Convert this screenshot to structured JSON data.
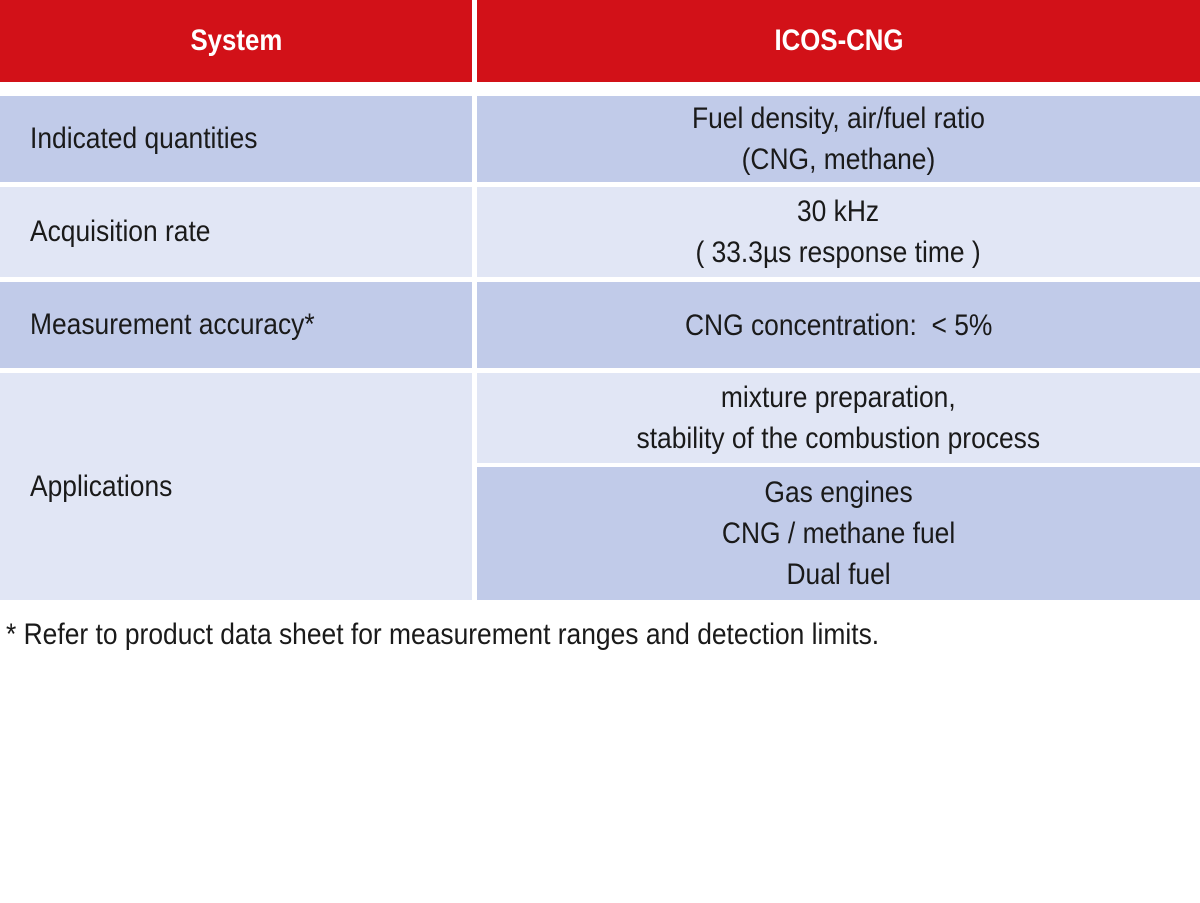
{
  "table": {
    "header": {
      "col1": "System",
      "col2": "ICOS-CNG"
    },
    "rows": [
      {
        "label": "Indicated quantities",
        "values": [
          "Fuel density, air/fuel ratio",
          "(CNG, methane)"
        ]
      },
      {
        "label": "Acquisition rate",
        "values": [
          "30 kHz",
          "( 33.3µs response time )"
        ]
      },
      {
        "label": "Measurement accuracy*",
        "values": [
          "CNG concentration:  < 5%"
        ]
      },
      {
        "label": "Applications",
        "sub_a": [
          "mixture preparation,",
          "stability of the combustion process"
        ],
        "sub_b": [
          "Gas engines",
          "CNG / methane fuel",
          "Dual fuel"
        ]
      }
    ]
  },
  "footnote": "* Refer to product data sheet for measurement ranges and detection limits.",
  "colors": {
    "header_bg": "#d21118",
    "row_dark": "#c1cbe9",
    "row_light": "#e1e6f5"
  }
}
